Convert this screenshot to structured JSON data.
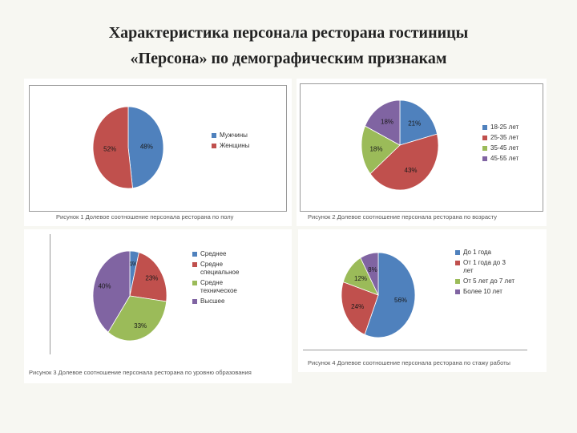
{
  "title_line1": "Характеристика персонала ресторана гостиницы",
  "title_line2": "«Персона» по демографическим признакам",
  "chart_data": [
    {
      "type": "pie",
      "categories": [
        "Мужчины",
        "Женщины"
      ],
      "values": [
        48,
        52
      ],
      "data_labels": [
        "48%",
        "52%"
      ],
      "colors": [
        "#4f81bd",
        "#c0504d"
      ],
      "caption": "Рисунок 1 Долевое соотношение персонала ресторана по полу",
      "legend_position": "right"
    },
    {
      "type": "pie",
      "categories": [
        "18-25 лет",
        "25-35 лет",
        "35-45 лет",
        "45-55 лет"
      ],
      "values": [
        21,
        43,
        18,
        18
      ],
      "data_labels": [
        "21%",
        "43%",
        "18%",
        "18%"
      ],
      "colors": [
        "#4f81bd",
        "#c0504d",
        "#9bbb59",
        "#8064a2"
      ],
      "caption": "Рисунок 2 Долевое соотношение персонала ресторана по возрасту",
      "legend_position": "right"
    },
    {
      "type": "pie",
      "categories": [
        "Среднее",
        "Средне специальное",
        "Средне техническое",
        "Высшее"
      ],
      "values": [
        4,
        23,
        33,
        40
      ],
      "data_labels": [
        "4%",
        "23%",
        "33%",
        "40%"
      ],
      "colors": [
        "#4f81bd",
        "#c0504d",
        "#9bbb59",
        "#8064a2"
      ],
      "caption": "Рисунок 3 Долевое соотношение персонала ресторана по уровню образования",
      "legend_position": "right"
    },
    {
      "type": "pie",
      "categories": [
        "До 1 года",
        "От 1 года до 3 лет",
        "От 5 лет до 7 лет",
        "Более 10 лет"
      ],
      "values": [
        56,
        24,
        12,
        8
      ],
      "data_labels": [
        "56%",
        "24%",
        "12%",
        "8%"
      ],
      "colors": [
        "#4f81bd",
        "#c0504d",
        "#9bbb59",
        "#8064a2"
      ],
      "caption": "Рисунок 4 Долевое соотношение персонала ресторана по стажу работы",
      "legend_position": "right"
    }
  ]
}
